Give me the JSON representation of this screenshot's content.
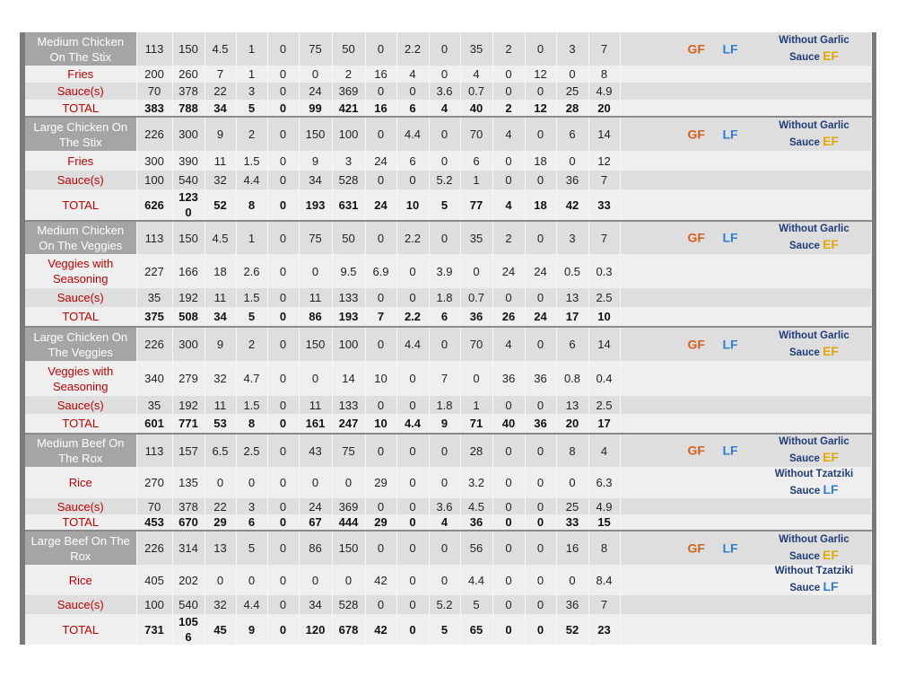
{
  "colors": {
    "item_name_bg": "#a5a5a5",
    "side_name_text": "#c00000",
    "gf": "#d4601a",
    "lf": "#2f7fd0",
    "ef": "#e0a800",
    "note_text": "#1f3c78"
  },
  "groups": [
    {
      "rows": [
        {
          "type": "item",
          "name": "Medium Chicken On The Stix",
          "values": [
            "113",
            "150",
            "4.5",
            "1",
            "0",
            "75",
            "50",
            "0",
            "2.2",
            "0",
            "35",
            "2",
            "0",
            "3",
            "7"
          ],
          "gf": "GF",
          "lf": "LF",
          "note": "Without Garlic Sauce",
          "note_tag": "EF"
        },
        {
          "type": "side",
          "name": "Fries",
          "values": [
            "200",
            "260",
            "7",
            "1",
            "0",
            "0",
            "2",
            "16",
            "4",
            "0",
            "4",
            "0",
            "12",
            "0",
            "8"
          ]
        },
        {
          "type": "side",
          "name": "Sauce(s)",
          "values": [
            "70",
            "378",
            "22",
            "3",
            "0",
            "24",
            "369",
            "0",
            "0",
            "3.6",
            "0.7",
            "0",
            "0",
            "25",
            "4.9"
          ]
        },
        {
          "type": "total",
          "name": "TOTAL",
          "values": [
            "383",
            "788",
            "34",
            "5",
            "0",
            "99",
            "421",
            "16",
            "6",
            "4",
            "40",
            "2",
            "12",
            "28",
            "20"
          ]
        }
      ]
    },
    {
      "rows": [
        {
          "type": "item",
          "name": "Large Chicken On The Stix",
          "values": [
            "226",
            "300",
            "9",
            "2",
            "0",
            "150",
            "100",
            "0",
            "4.4",
            "0",
            "70",
            "4",
            "0",
            "6",
            "14"
          ],
          "gf": "GF",
          "lf": "LF",
          "note": "Without Garlic Sauce",
          "note_tag": "EF"
        },
        {
          "type": "side",
          "name": "Fries",
          "values": [
            "300",
            "390",
            "11",
            "1.5",
            "0",
            "9",
            "3",
            "24",
            "6",
            "0",
            "6",
            "0",
            "18",
            "0",
            "12"
          ]
        },
        {
          "type": "side",
          "name": "Sauce(s)",
          "values": [
            "100",
            "540",
            "32",
            "4.4",
            "0",
            "34",
            "528",
            "0",
            "0",
            "5.2",
            "1",
            "0",
            "0",
            "36",
            "7"
          ]
        },
        {
          "type": "total",
          "name": "TOTAL",
          "values": [
            "626",
            "1230",
            "52",
            "8",
            "0",
            "193",
            "631",
            "24",
            "10",
            "5",
            "77",
            "4",
            "18",
            "42",
            "33"
          ]
        }
      ]
    },
    {
      "rows": [
        {
          "type": "item",
          "name": "Medium Chicken On The Veggies",
          "values": [
            "113",
            "150",
            "4.5",
            "1",
            "0",
            "75",
            "50",
            "0",
            "2.2",
            "0",
            "35",
            "2",
            "0",
            "3",
            "7"
          ],
          "gf": "GF",
          "lf": "LF",
          "note": "Without Garlic Sauce",
          "note_tag": "EF"
        },
        {
          "type": "side",
          "name": "Veggies with Seasoning",
          "values": [
            "227",
            "166",
            "18",
            "2.6",
            "0",
            "0",
            "9.5",
            "6.9",
            "0",
            "3.9",
            "0",
            "24",
            "24",
            "0.5",
            "0.3"
          ]
        },
        {
          "type": "side",
          "name": "Sauce(s)",
          "values": [
            "35",
            "192",
            "11",
            "1.5",
            "0",
            "11",
            "133",
            "0",
            "0",
            "1.8",
            "0.7",
            "0",
            "0",
            "13",
            "2.5"
          ]
        },
        {
          "type": "total",
          "name": "TOTAL",
          "values": [
            "375",
            "508",
            "34",
            "5",
            "0",
            "86",
            "193",
            "7",
            "2.2",
            "6",
            "36",
            "26",
            "24",
            "17",
            "10"
          ]
        }
      ]
    },
    {
      "rows": [
        {
          "type": "item",
          "name": "Large Chicken On The Veggies",
          "values": [
            "226",
            "300",
            "9",
            "2",
            "0",
            "150",
            "100",
            "0",
            "4.4",
            "0",
            "70",
            "4",
            "0",
            "6",
            "14"
          ],
          "gf": "GF",
          "lf": "LF",
          "note": "Without Garlic Sauce",
          "note_tag": "EF"
        },
        {
          "type": "side",
          "name": "Veggies with Seasoning",
          "values": [
            "340",
            "279",
            "32",
            "4.7",
            "0",
            "0",
            "14",
            "10",
            "0",
            "7",
            "0",
            "36",
            "36",
            "0.8",
            "0.4"
          ]
        },
        {
          "type": "side",
          "name": "Sauce(s)",
          "values": [
            "35",
            "192",
            "11",
            "1.5",
            "0",
            "11",
            "133",
            "0",
            "0",
            "1.8",
            "1",
            "0",
            "0",
            "13",
            "2.5"
          ]
        },
        {
          "type": "total",
          "name": "TOTAL",
          "values": [
            "601",
            "771",
            "53",
            "8",
            "0",
            "161",
            "247",
            "10",
            "4.4",
            "9",
            "71",
            "40",
            "36",
            "20",
            "17"
          ]
        }
      ]
    },
    {
      "rows": [
        {
          "type": "item",
          "name": "Medium Beef On The Rox",
          "values": [
            "113",
            "157",
            "6.5",
            "2.5",
            "0",
            "43",
            "75",
            "0",
            "0",
            "0",
            "28",
            "0",
            "0",
            "8",
            "4"
          ],
          "gf": "GF",
          "lf": "LF",
          "note": "Without Garlic Sauce",
          "note_tag": "EF"
        },
        {
          "type": "side",
          "name": "Rice",
          "values": [
            "270",
            "135",
            "0",
            "0",
            "0",
            "0",
            "0",
            "29",
            "0",
            "0",
            "3.2",
            "0",
            "0",
            "0",
            "6.3"
          ],
          "note": "Without Tzatziki Sauce",
          "note_tag": "LF"
        },
        {
          "type": "side",
          "name": "Sauce(s)",
          "values": [
            "70",
            "378",
            "22",
            "3",
            "0",
            "24",
            "369",
            "0",
            "0",
            "3.6",
            "4.5",
            "0",
            "0",
            "25",
            "4.9"
          ]
        },
        {
          "type": "total",
          "name": "TOTAL",
          "values": [
            "453",
            "670",
            "29",
            "6",
            "0",
            "67",
            "444",
            "29",
            "0",
            "4",
            "36",
            "0",
            "0",
            "33",
            "15"
          ]
        }
      ]
    },
    {
      "rows": [
        {
          "type": "item",
          "name": "Large Beef On The Rox",
          "values": [
            "226",
            "314",
            "13",
            "5",
            "0",
            "86",
            "150",
            "0",
            "0",
            "0",
            "56",
            "0",
            "0",
            "16",
            "8"
          ],
          "gf": "GF",
          "lf": "LF",
          "note": "Without Garlic Sauce",
          "note_tag": "EF"
        },
        {
          "type": "side",
          "name": "Rice",
          "values": [
            "405",
            "202",
            "0",
            "0",
            "0",
            "0",
            "0",
            "42",
            "0",
            "0",
            "4.4",
            "0",
            "0",
            "0",
            "8.4"
          ],
          "note": "Without Tzatziki Sauce",
          "note_tag": "LF"
        },
        {
          "type": "side",
          "name": "Sauce(s)",
          "values": [
            "100",
            "540",
            "32",
            "4.4",
            "0",
            "34",
            "528",
            "0",
            "0",
            "5.2",
            "5",
            "0",
            "0",
            "36",
            "7"
          ]
        },
        {
          "type": "total",
          "name": "TOTAL",
          "values": [
            "731",
            "1056",
            "45",
            "9",
            "0",
            "120",
            "678",
            "42",
            "0",
            "5",
            "65",
            "0",
            "0",
            "52",
            "23"
          ]
        }
      ]
    }
  ]
}
